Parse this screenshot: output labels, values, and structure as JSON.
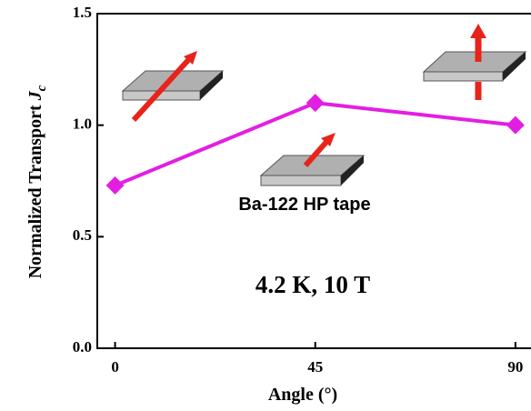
{
  "chart_data": {
    "type": "line",
    "ylabel": "Normalized Transport",
    "ylabel_symbol": "J",
    "ylabel_subscript": "c",
    "xlabel": "Angle (°)",
    "annotations": [
      "Ba-122 HP tape",
      "4.2 K, 10 T"
    ],
    "x": [
      0,
      45,
      90
    ],
    "series": [
      {
        "color": "#e31ee3",
        "values": [
          0.73,
          1.1,
          1.0
        ]
      }
    ],
    "xlim": [
      -4,
      93.5
    ],
    "xticks": [
      0,
      45,
      90
    ],
    "ylim": [
      0,
      1.5
    ],
    "yticks": [
      {
        "value": 0,
        "label": "0.0"
      },
      0.5,
      {
        "value": 1,
        "label": "1.0"
      },
      {
        "value": 1.5,
        "label": "1.5"
      }
    ]
  }
}
